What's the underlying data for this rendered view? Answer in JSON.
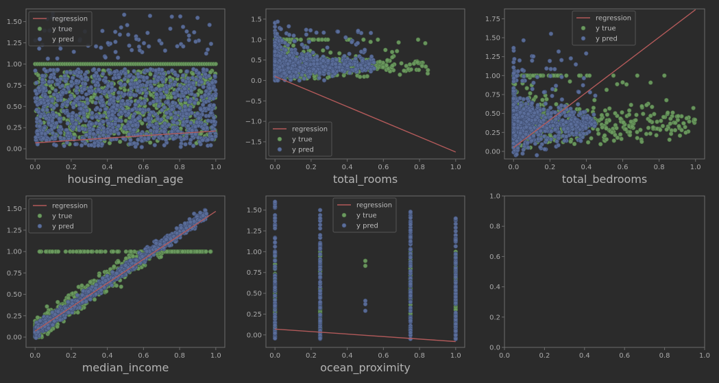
{
  "colors": {
    "background": "#2b2b2b",
    "axes_edge": "#6e6e6e",
    "tick_text": "#aaaaaa",
    "regression": "#b35a5a",
    "y_true": "#6b9a5f",
    "y_true_edge": "#4c7144",
    "y_pred": "#5b6e9a",
    "y_pred_edge": "#3f4d6e",
    "legend_bg": "#2e2e2e",
    "legend_edge": "#555555"
  },
  "legend_labels": {
    "regression": "regression",
    "y_true": "y true",
    "y_pred": "y pred"
  },
  "chart_data": [
    {
      "type": "scatter",
      "xlabel": "housing_median_age",
      "xlim": [
        -0.05,
        1.05
      ],
      "ylim": [
        -0.12,
        1.65
      ],
      "xticks": [
        0.0,
        0.2,
        0.4,
        0.6,
        0.8,
        1.0
      ],
      "yticks": [
        0.0,
        0.25,
        0.5,
        0.75,
        1.0,
        1.25,
        1.5
      ],
      "tick_labels_x": [
        "0.0",
        "0.2",
        "0.4",
        "0.6",
        "0.8",
        "1.0"
      ],
      "tick_labels_y": [
        "0.00",
        "0.25",
        "0.50",
        "0.75",
        "1.00",
        "1.25",
        "1.50"
      ],
      "legend_loc": "upper-left",
      "regression_line": [
        [
          0.0,
          0.07
        ],
        [
          1.0,
          0.21
        ]
      ],
      "series": [
        {
          "name": "y true",
          "role": "y_true",
          "pattern": "vertical_band",
          "x_range": [
            0.0,
            1.0
          ],
          "y_range": [
            0.05,
            1.0
          ],
          "n": 700,
          "cap_row": 1.0
        },
        {
          "name": "y pred",
          "role": "y_pred",
          "pattern": "vertical_band",
          "x_range": [
            0.0,
            1.0
          ],
          "y_range": [
            0.02,
            1.02
          ],
          "n": 1100,
          "outliers_y": [
            1.05,
            1.6
          ],
          "n_outliers": 70
        }
      ]
    },
    {
      "type": "scatter",
      "xlabel": "total_rooms",
      "xlim": [
        -0.05,
        1.05
      ],
      "ylim": [
        -1.92,
        1.75
      ],
      "xticks": [
        0.0,
        0.2,
        0.4,
        0.6,
        0.8,
        1.0
      ],
      "yticks": [
        -1.5,
        -1.0,
        -0.5,
        0.0,
        0.5,
        1.0,
        1.5
      ],
      "tick_labels_x": [
        "0.0",
        "0.2",
        "0.4",
        "0.6",
        "0.8",
        "1.0"
      ],
      "tick_labels_y": [
        "−1.5",
        "−1.0",
        "−0.5",
        "0.0",
        "0.5",
        "1.0",
        "1.5"
      ],
      "legend_loc": "lower-left",
      "regression_line": [
        [
          0.0,
          0.1
        ],
        [
          1.0,
          -1.75
        ]
      ],
      "series": [
        {
          "name": "y true",
          "role": "y_true",
          "pattern": "decay",
          "x_max": 0.85,
          "y_range": [
            0.05,
            1.0
          ],
          "n": 650,
          "cap_row": 1.0
        },
        {
          "name": "y pred",
          "role": "y_pred",
          "pattern": "decay",
          "x_max": 0.55,
          "y_range": [
            0.0,
            1.55
          ],
          "n": 900
        }
      ]
    },
    {
      "type": "scatter",
      "xlabel": "total_bedrooms",
      "xlim": [
        -0.05,
        1.05
      ],
      "ylim": [
        -0.1,
        1.88
      ],
      "xticks": [
        0.0,
        0.2,
        0.4,
        0.6,
        0.8,
        1.0
      ],
      "yticks": [
        0.0,
        0.25,
        0.5,
        0.75,
        1.0,
        1.25,
        1.5,
        1.75
      ],
      "tick_labels_x": [
        "0.0",
        "0.2",
        "0.4",
        "0.6",
        "0.8",
        "1.0"
      ],
      "tick_labels_y": [
        "0.00",
        "0.25",
        "0.50",
        "0.75",
        "1.00",
        "1.25",
        "1.50",
        "1.75"
      ],
      "legend_loc": "upper-center",
      "regression_line": [
        [
          0.0,
          0.05
        ],
        [
          1.0,
          1.87
        ]
      ],
      "series": [
        {
          "name": "y true",
          "role": "y_true",
          "pattern": "decay",
          "x_max": 1.0,
          "y_range": [
            0.05,
            1.0
          ],
          "n": 650,
          "cap_row": 1.0
        },
        {
          "name": "y pred",
          "role": "y_pred",
          "pattern": "decay",
          "x_max": 0.45,
          "y_range": [
            -0.05,
            1.58
          ],
          "n": 900
        }
      ]
    },
    {
      "type": "scatter",
      "xlabel": "median_income",
      "xlim": [
        -0.05,
        1.05
      ],
      "ylim": [
        -0.12,
        1.65
      ],
      "xticks": [
        0.0,
        0.2,
        0.4,
        0.6,
        0.8,
        1.0
      ],
      "yticks": [
        0.0,
        0.25,
        0.5,
        0.75,
        1.0,
        1.25,
        1.5
      ],
      "tick_labels_x": [
        "0.0",
        "0.2",
        "0.4",
        "0.6",
        "0.8",
        "1.0"
      ],
      "tick_labels_y": [
        "0.00",
        "0.25",
        "0.50",
        "0.75",
        "1.00",
        "1.25",
        "1.50"
      ],
      "legend_loc": "upper-left",
      "regression_line": [
        [
          0.0,
          0.07
        ],
        [
          1.0,
          1.47
        ]
      ],
      "series": [
        {
          "name": "y true",
          "role": "y_true",
          "pattern": "linear",
          "slope": 1.45,
          "intercept": 0.08,
          "spread": 0.22,
          "x_max": 1.0,
          "y_range": [
            0.0,
            1.0
          ],
          "n": 800,
          "cap_row": 1.0
        },
        {
          "name": "y pred",
          "role": "y_pred",
          "pattern": "linear",
          "slope": 1.45,
          "intercept": 0.07,
          "spread": 0.12,
          "x_max": 1.0,
          "y_range": [
            -0.08,
            1.6
          ],
          "n": 1000
        }
      ]
    },
    {
      "type": "scatter",
      "xlabel": "ocean_proximity",
      "xlim": [
        -0.05,
        1.05
      ],
      "ylim": [
        -0.15,
        1.67
      ],
      "xticks": [
        0.0,
        0.2,
        0.4,
        0.6,
        0.8,
        1.0
      ],
      "yticks": [
        0.0,
        0.25,
        0.5,
        0.75,
        1.0,
        1.25,
        1.5
      ],
      "tick_labels_x": [
        "0.0",
        "0.2",
        "0.4",
        "0.6",
        "0.8",
        "1.0"
      ],
      "tick_labels_y": [
        "0.00",
        "0.25",
        "0.50",
        "0.75",
        "1.00",
        "1.25",
        "1.50"
      ],
      "legend_loc": "upper-center",
      "regression_line": [
        [
          0.0,
          0.07
        ],
        [
          1.0,
          -0.08
        ]
      ],
      "series": [
        {
          "name": "y true",
          "role": "y_true",
          "pattern": "columns",
          "columns": [
            0.0,
            0.25,
            0.75,
            1.0
          ],
          "extra_points": [
            [
              0.5,
              0.89
            ],
            [
              0.5,
              0.83
            ]
          ],
          "y_range": [
            0.05,
            1.0
          ],
          "n": 160
        },
        {
          "name": "y pred",
          "role": "y_pred",
          "pattern": "columns",
          "columns": [
            0.0,
            0.25,
            0.75,
            1.0
          ],
          "column_tops": [
            1.6,
            1.5,
            1.48,
            1.4
          ],
          "extra_points": [
            [
              0.5,
              0.41
            ],
            [
              0.5,
              0.37
            ],
            [
              0.5,
              0.29
            ]
          ],
          "y_range": [
            -0.05,
            1.6
          ],
          "n": 320
        }
      ]
    },
    {
      "type": "empty",
      "xlabel": "",
      "xlim": [
        0,
        1
      ],
      "ylim": [
        0,
        1
      ],
      "xticks": [
        0.0,
        0.2,
        0.4,
        0.6,
        0.8,
        1.0
      ],
      "yticks": [
        0.0,
        0.2,
        0.4,
        0.6,
        0.8,
        1.0
      ],
      "tick_labels_x": [
        "0.0",
        "0.2",
        "0.4",
        "0.6",
        "0.8",
        "1.0"
      ],
      "tick_labels_y": [
        "0.0",
        "0.2",
        "0.4",
        "0.6",
        "0.8",
        "1.0"
      ],
      "legend_loc": "none",
      "series": []
    }
  ]
}
